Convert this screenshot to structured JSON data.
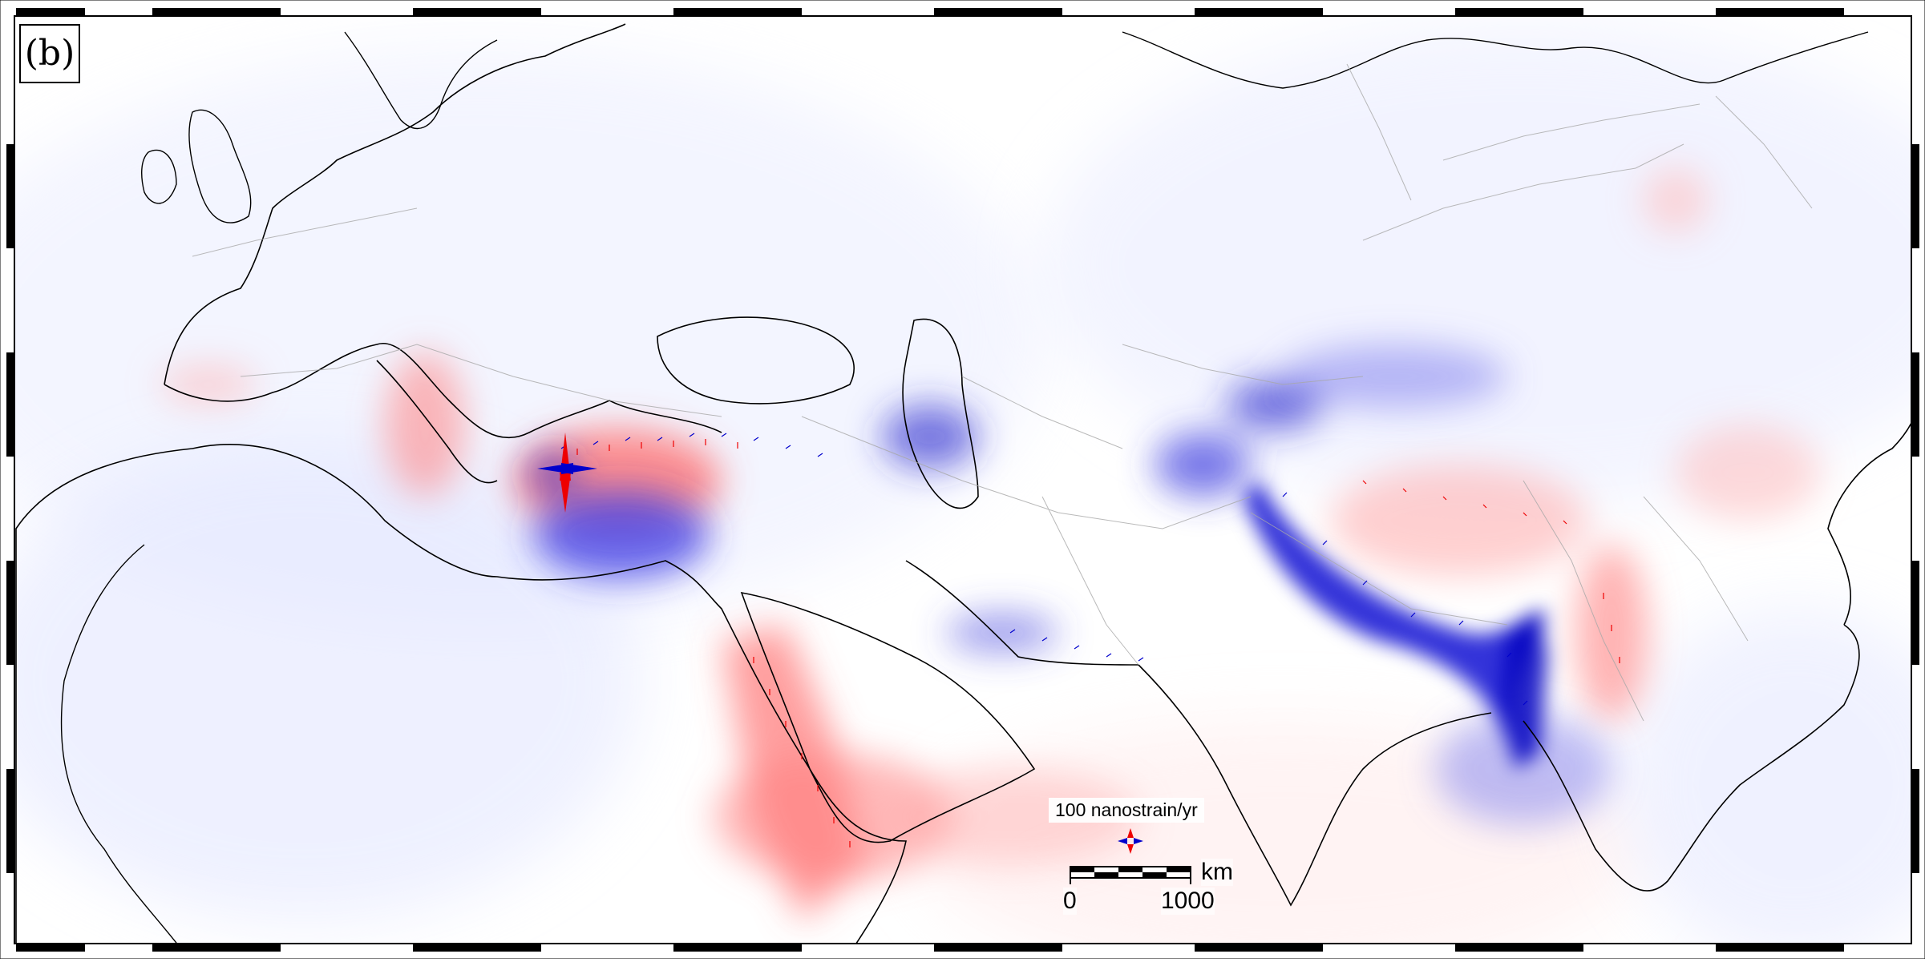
{
  "panel_label": "(b)",
  "legend": {
    "title": "100 nanostrain/yr",
    "compression_color": "#0000cc",
    "extension_color": "#ee0000"
  },
  "scale_bar": {
    "unit": "km",
    "start_label": "0",
    "end_label": "1000"
  },
  "colors": {
    "compression": "#0000cc",
    "extension": "#ee0000",
    "coastline": "#000000",
    "fault": "#9a9a9a",
    "background": "#ffffff"
  }
}
